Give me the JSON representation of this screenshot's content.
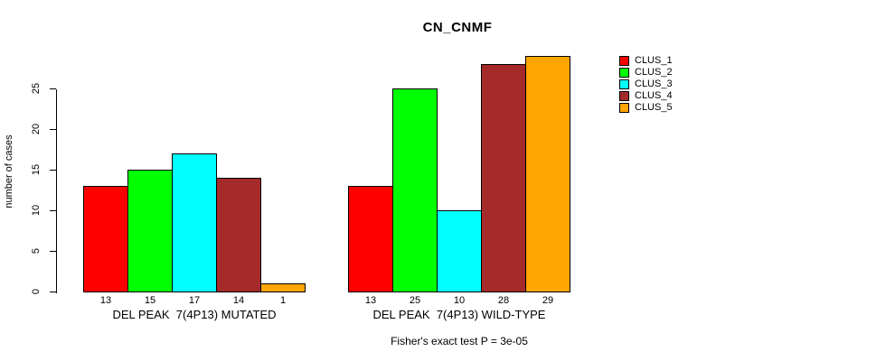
{
  "chart_data": {
    "type": "bar",
    "title": "CN_CNMF",
    "ylabel": "number of cases",
    "yticks": [
      0,
      5,
      10,
      15,
      20,
      25
    ],
    "ylim": [
      0,
      29
    ],
    "grid": false,
    "legend_position": "right",
    "series_colors": [
      "#ff0000",
      "#00ff00",
      "#00ffff",
      "#a52a2a",
      "#ffa500"
    ],
    "groups": [
      {
        "label": "DEL PEAK  7(4P13) MUTATED",
        "values": [
          13,
          15,
          17,
          14,
          1
        ]
      },
      {
        "label": "DEL PEAK  7(4P13) WILD-TYPE",
        "values": [
          13,
          25,
          10,
          28,
          29
        ]
      }
    ],
    "legend": [
      {
        "label": "CLUS_1",
        "color": "#ff0000"
      },
      {
        "label": "CLUS_2",
        "color": "#00ff00"
      },
      {
        "label": "CLUS_3",
        "color": "#00ffff"
      },
      {
        "label": "CLUS_4",
        "color": "#a52a2a"
      },
      {
        "label": "CLUS_5",
        "color": "#ffa500"
      }
    ],
    "annotation": "Fisher's exact test P = 3e-05"
  }
}
